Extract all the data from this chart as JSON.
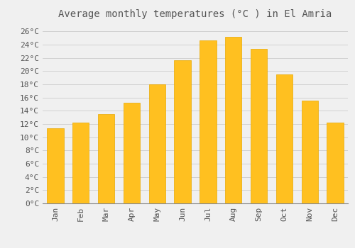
{
  "title": "Average monthly temperatures (°C ) in El Amria",
  "months": [
    "Jan",
    "Feb",
    "Mar",
    "Apr",
    "May",
    "Jun",
    "Jul",
    "Aug",
    "Sep",
    "Oct",
    "Nov",
    "Dec"
  ],
  "temperatures": [
    11.4,
    12.2,
    13.5,
    15.2,
    18.0,
    21.6,
    24.6,
    25.2,
    23.4,
    19.5,
    15.5,
    12.2
  ],
  "bar_color": "#FFC020",
  "bar_edge_color": "#E8A800",
  "background_color": "#F0F0F0",
  "grid_color": "#CCCCCC",
  "text_color": "#555555",
  "ylim": [
    0,
    27
  ],
  "yticks": [
    0,
    2,
    4,
    6,
    8,
    10,
    12,
    14,
    16,
    18,
    20,
    22,
    24,
    26
  ],
  "ytick_labels": [
    "0°C",
    "2°C",
    "4°C",
    "6°C",
    "8°C",
    "10°C",
    "12°C",
    "14°C",
    "16°C",
    "18°C",
    "20°C",
    "22°C",
    "24°C",
    "26°C"
  ],
  "title_fontsize": 10,
  "tick_fontsize": 8,
  "font_family": "monospace"
}
